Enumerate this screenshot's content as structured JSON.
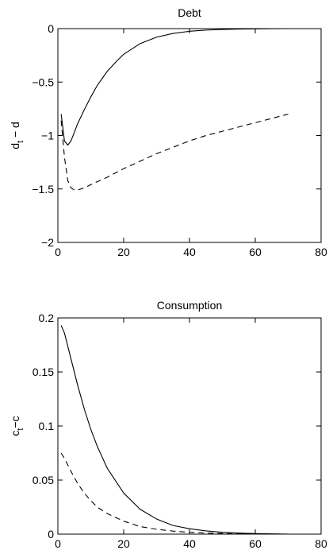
{
  "chart_data": [
    {
      "type": "line",
      "title": "Debt",
      "ylabel": "d_t − d",
      "ylabel_main": "d",
      "ylabel_sub": "t",
      "ylabel_rest": " − d",
      "xlim": [
        0,
        80
      ],
      "ylim": [
        -2,
        0
      ],
      "xticks": [
        0,
        20,
        40,
        60,
        80
      ],
      "xtick_labels": [
        "0",
        "20",
        "40",
        "60",
        "80"
      ],
      "yticks": [
        0,
        -0.5,
        -1,
        -1.5,
        -2
      ],
      "ytick_labels": [
        "0",
        "−0.5",
        "−1",
        "−1.5",
        "−2"
      ],
      "grid": false,
      "series": [
        {
          "style": "solid",
          "x": [
            1,
            2,
            3,
            4,
            5,
            6,
            8,
            10,
            12,
            15,
            18,
            20,
            25,
            30,
            35,
            40,
            45,
            50,
            55,
            60,
            65,
            70
          ],
          "y": [
            -0.8,
            -1.05,
            -1.09,
            -1.05,
            -0.97,
            -0.89,
            -0.76,
            -0.64,
            -0.53,
            -0.4,
            -0.3,
            -0.24,
            -0.14,
            -0.08,
            -0.045,
            -0.025,
            -0.014,
            -0.008,
            -0.004,
            -0.002,
            -0.001,
            0
          ]
        },
        {
          "style": "dashed",
          "x": [
            1,
            2,
            3,
            4,
            5,
            6,
            8,
            10,
            15,
            20,
            25,
            30,
            35,
            40,
            45,
            50,
            55,
            60,
            65,
            70
          ],
          "y": [
            -0.86,
            -1.2,
            -1.42,
            -1.49,
            -1.51,
            -1.51,
            -1.49,
            -1.46,
            -1.39,
            -1.31,
            -1.24,
            -1.17,
            -1.11,
            -1.05,
            -1.0,
            -0.96,
            -0.92,
            -0.88,
            -0.84,
            -0.8
          ]
        }
      ]
    },
    {
      "type": "line",
      "title": "Consumption",
      "ylabel": "c_t−c",
      "ylabel_main": "c",
      "ylabel_sub": "t",
      "ylabel_rest": "−c",
      "xlim": [
        0,
        80
      ],
      "ylim": [
        0,
        0.2
      ],
      "xticks": [
        0,
        20,
        40,
        60,
        80
      ],
      "xtick_labels": [
        "0",
        "20",
        "40",
        "60",
        "80"
      ],
      "yticks": [
        0,
        0.05,
        0.1,
        0.15,
        0.2
      ],
      "ytick_labels": [
        "0",
        "0.05",
        "0.1",
        "0.15",
        "0.2"
      ],
      "grid": false,
      "series": [
        {
          "style": "solid",
          "x": [
            1,
            2,
            4,
            6,
            8,
            10,
            12,
            15,
            20,
            25,
            30,
            35,
            40,
            45,
            50,
            55,
            60,
            65,
            70
          ],
          "y": [
            0.193,
            0.186,
            0.162,
            0.138,
            0.116,
            0.097,
            0.081,
            0.061,
            0.038,
            0.023,
            0.014,
            0.008,
            0.005,
            0.003,
            0.0017,
            0.001,
            0.0005,
            0.0002,
            0
          ]
        },
        {
          "style": "dashed",
          "x": [
            1,
            2,
            4,
            6,
            8,
            10,
            12,
            15,
            20,
            25,
            30,
            35,
            40,
            45,
            50,
            55,
            60,
            65,
            70
          ],
          "y": [
            0.075,
            0.07,
            0.058,
            0.047,
            0.038,
            0.031,
            0.025,
            0.019,
            0.012,
            0.007,
            0.0045,
            0.0028,
            0.0017,
            0.001,
            0.0006,
            0.0003,
            0.0002,
            0.0001,
            0
          ]
        }
      ]
    }
  ]
}
